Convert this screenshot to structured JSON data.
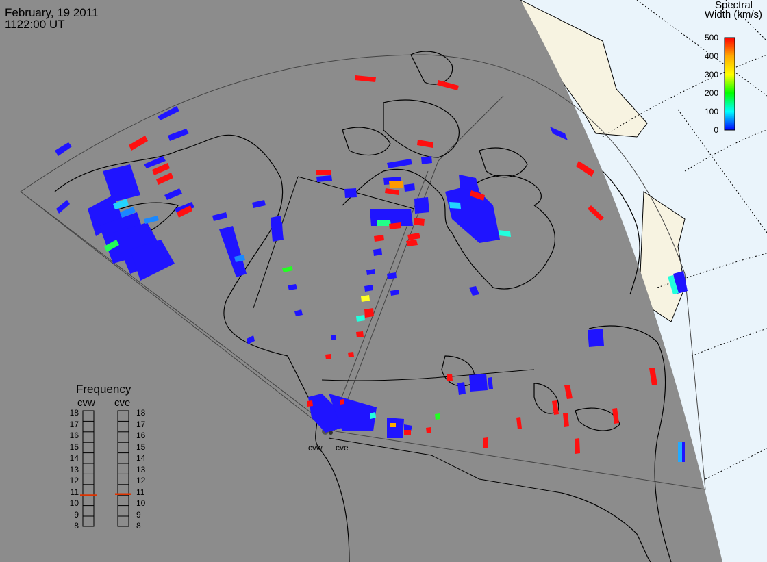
{
  "header": {
    "date": "February, 19 2011",
    "time": "1122:00 UT"
  },
  "colorbar": {
    "title_line1": "Spectral",
    "title_line2": "Width (km/s)",
    "ticks": [
      "500",
      "400",
      "300",
      "200",
      "100",
      "0"
    ],
    "colors": [
      "#ff0000",
      "#ffaa00",
      "#ffff00",
      "#00ff00",
      "#00ffff",
      "#0000ff"
    ]
  },
  "frequency": {
    "title": "Frequency",
    "radars": [
      {
        "name": "cvw",
        "value": 10.7
      },
      {
        "name": "cve",
        "value": 10.8
      }
    ],
    "scale": [
      "18",
      "17",
      "16",
      "15",
      "14",
      "13",
      "12",
      "11",
      "10",
      "9",
      "8"
    ]
  },
  "radar_labels": [
    "cvw",
    "cve"
  ],
  "colors": {
    "night": "#8c8c8c",
    "day_sea": "#eaf4fb",
    "day_land": "#f7f3e1",
    "coast": "#000000",
    "freq_marker": "#dd3300"
  }
}
